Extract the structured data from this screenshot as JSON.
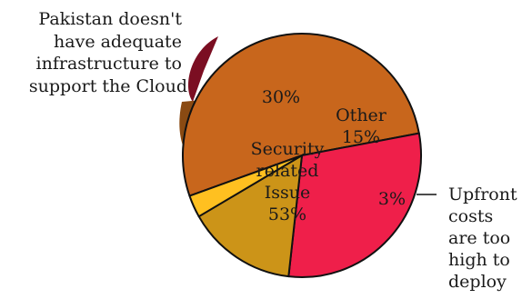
{
  "chart_data": {
    "type": "pie",
    "title": "",
    "slices": [
      {
        "name": "Security related Issue",
        "value": 53,
        "label_lines": [
          "Security",
          "related",
          "Issue",
          "53%"
        ],
        "color": "#C8661C"
      },
      {
        "name": "Pakistan doesn't have adequate infrastructure to support the Cloud",
        "value": 30,
        "label_lines": [
          "30%"
        ],
        "color": "#EF1F4A"
      },
      {
        "name": "Other",
        "value": 15,
        "label_lines": [
          "Other",
          "15%"
        ],
        "color": "#CC9418"
      },
      {
        "name": "Upfront costs are too high to deploy",
        "value": 3,
        "label_lines": [
          "3%"
        ],
        "color": "#FFC020"
      }
    ],
    "callouts": {
      "left": [
        "Pakistan doesn't",
        "have adequate",
        "infrastructure to",
        "support the Cloud"
      ],
      "right": [
        "Upfront",
        "costs",
        "are too",
        "high to",
        "deploy"
      ]
    },
    "legend": "none",
    "grid": false
  },
  "colors": {
    "shadow_dark": "#7B0E22",
    "shadow_brown": "#8A4A12",
    "shadow_gold": "#A57510",
    "outline": "#111111"
  }
}
